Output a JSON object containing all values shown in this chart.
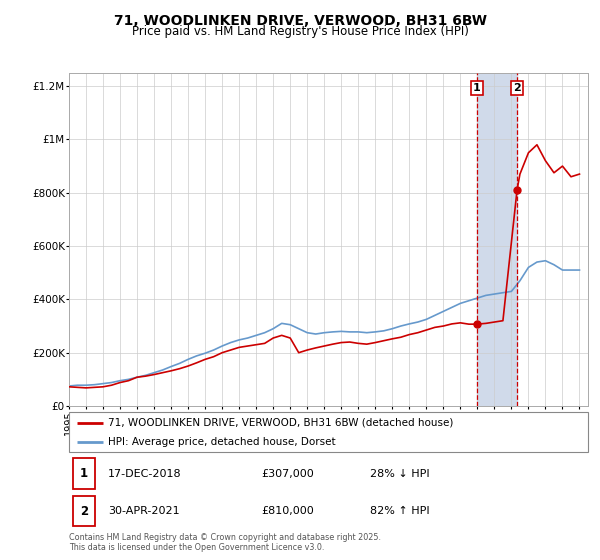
{
  "title": "71, WOODLINKEN DRIVE, VERWOOD, BH31 6BW",
  "subtitle": "Price paid vs. HM Land Registry's House Price Index (HPI)",
  "footer": "Contains HM Land Registry data © Crown copyright and database right 2025.\nThis data is licensed under the Open Government Licence v3.0.",
  "legend_label_red": "71, WOODLINKEN DRIVE, VERWOOD, BH31 6BW (detached house)",
  "legend_label_blue": "HPI: Average price, detached house, Dorset",
  "annotation1_label": "1",
  "annotation1_date": "17-DEC-2018",
  "annotation1_price": "£307,000",
  "annotation1_hpi": "28% ↓ HPI",
  "annotation2_label": "2",
  "annotation2_date": "30-APR-2021",
  "annotation2_price": "£810,000",
  "annotation2_hpi": "82% ↑ HPI",
  "red_color": "#cc0000",
  "blue_color": "#6699cc",
  "shading_color": "#d0daea",
  "vline_color": "#cc0000",
  "marker1_x": 2018.96,
  "marker1_y": 307000,
  "marker2_x": 2021.33,
  "marker2_y": 810000,
  "vline1_x": 2018.96,
  "vline2_x": 2021.33,
  "ylim": [
    0,
    1250000
  ],
  "xlim": [
    1995,
    2025.5
  ],
  "yticks": [
    0,
    200000,
    400000,
    600000,
    800000,
    1000000,
    1200000
  ],
  "ytick_labels": [
    "£0",
    "£200K",
    "£400K",
    "£600K",
    "£800K",
    "£1M",
    "£1.2M"
  ],
  "xticks": [
    1995,
    1996,
    1997,
    1998,
    1999,
    2000,
    2001,
    2002,
    2003,
    2004,
    2005,
    2006,
    2007,
    2008,
    2009,
    2010,
    2011,
    2012,
    2013,
    2014,
    2015,
    2016,
    2017,
    2018,
    2019,
    2020,
    2021,
    2022,
    2023,
    2024,
    2025
  ],
  "hpi_x": [
    1995,
    1995.5,
    1996,
    1996.5,
    1997,
    1997.5,
    1998,
    1998.5,
    1999,
    1999.5,
    2000,
    2000.5,
    2001,
    2001.5,
    2002,
    2002.5,
    2003,
    2003.5,
    2004,
    2004.5,
    2005,
    2005.5,
    2006,
    2006.5,
    2007,
    2007.5,
    2008,
    2008.5,
    2009,
    2009.5,
    2010,
    2010.5,
    2011,
    2011.5,
    2012,
    2012.5,
    2013,
    2013.5,
    2014,
    2014.5,
    2015,
    2015.5,
    2016,
    2016.5,
    2017,
    2017.5,
    2018,
    2018.5,
    2019,
    2019.5,
    2020,
    2020.5,
    2021,
    2021.5,
    2022,
    2022.5,
    2023,
    2023.5,
    2024,
    2024.5,
    2025
  ],
  "hpi_y": [
    75000,
    78000,
    78000,
    80000,
    84000,
    88000,
    95000,
    100000,
    108000,
    115000,
    125000,
    135000,
    148000,
    160000,
    175000,
    188000,
    198000,
    210000,
    225000,
    238000,
    248000,
    255000,
    265000,
    275000,
    290000,
    310000,
    305000,
    290000,
    275000,
    270000,
    275000,
    278000,
    280000,
    278000,
    278000,
    275000,
    278000,
    282000,
    290000,
    300000,
    308000,
    315000,
    325000,
    340000,
    355000,
    370000,
    385000,
    395000,
    405000,
    415000,
    420000,
    425000,
    430000,
    470000,
    520000,
    540000,
    545000,
    530000,
    510000,
    510000,
    510000
  ],
  "price_x": [
    1995.0,
    1996.0,
    1997.0,
    1997.5,
    1998.0,
    1998.5,
    1999.0,
    1999.5,
    2000.0,
    2000.5,
    2001.0,
    2001.5,
    2002.0,
    2002.5,
    2003.0,
    2003.5,
    2004.0,
    2004.5,
    2005.0,
    2005.5,
    2006.0,
    2006.5,
    2007.0,
    2007.5,
    2008.0,
    2008.5,
    2009.0,
    2009.5,
    2010.0,
    2010.5,
    2011.0,
    2011.5,
    2012.0,
    2012.5,
    2013.0,
    2013.5,
    2014.0,
    2014.5,
    2015.0,
    2015.5,
    2016.0,
    2016.5,
    2017.0,
    2017.5,
    2018.0,
    2018.5,
    2018.96,
    2019.5,
    2020.0,
    2020.5,
    2021.33,
    2021.5,
    2022.0,
    2022.5,
    2023.0,
    2023.5,
    2024.0,
    2024.5,
    2025.0
  ],
  "price_y": [
    72000,
    68000,
    72000,
    78000,
    88000,
    95000,
    108000,
    112000,
    118000,
    125000,
    132000,
    140000,
    150000,
    162000,
    175000,
    185000,
    200000,
    210000,
    220000,
    225000,
    230000,
    235000,
    255000,
    265000,
    255000,
    200000,
    210000,
    218000,
    225000,
    232000,
    238000,
    240000,
    235000,
    232000,
    238000,
    245000,
    252000,
    258000,
    268000,
    275000,
    285000,
    295000,
    300000,
    308000,
    312000,
    307000,
    307000,
    310000,
    315000,
    320000,
    810000,
    870000,
    950000,
    980000,
    920000,
    875000,
    900000,
    860000,
    870000
  ]
}
